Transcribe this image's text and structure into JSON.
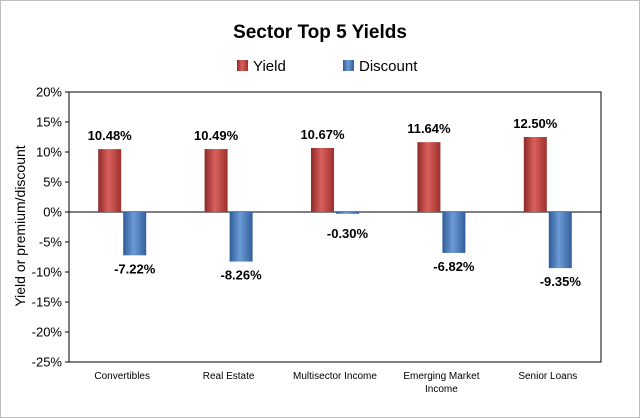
{
  "chart_data": {
    "type": "bar",
    "title": "Sector Top 5 Yields",
    "xlabel": "",
    "ylabel": "Yield or premium/discount",
    "ylim": [
      -25,
      20
    ],
    "ytick_step": 5,
    "ytick_format": "percent",
    "legend_position": "top-center",
    "grid": false,
    "categories": [
      [
        "Convertibles"
      ],
      [
        "Real Estate"
      ],
      [
        "Multisector Income"
      ],
      [
        "Emerging Market",
        "Income"
      ],
      [
        "Senior Loans"
      ]
    ],
    "series": [
      {
        "name": "Yield",
        "color": "#c0504d",
        "values": [
          10.48,
          10.49,
          10.67,
          11.64,
          12.5
        ],
        "labels": [
          "10.48%",
          "10.49%",
          "10.67%",
          "11.64%",
          "12.50%"
        ]
      },
      {
        "name": "Discount",
        "color": "#4f81bd",
        "values": [
          -7.22,
          -8.26,
          -0.3,
          -6.82,
          -9.35
        ],
        "labels": [
          "-7.22%",
          "-8.26%",
          "-0.30%",
          "-6.82%",
          "-9.35%"
        ]
      }
    ]
  }
}
